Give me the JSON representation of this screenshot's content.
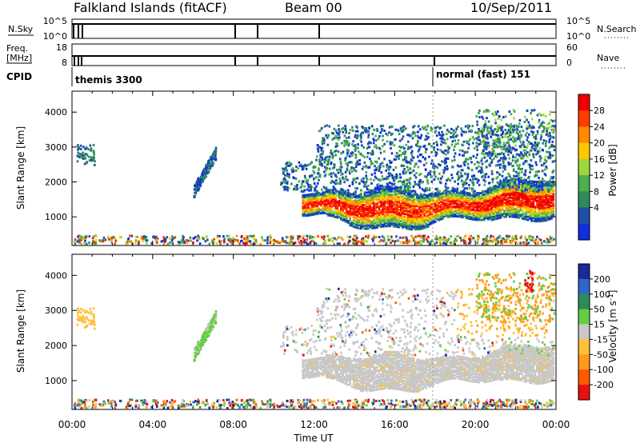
{
  "header": {
    "title": "Falkland Islands (fitACF)",
    "beam": "Beam 00",
    "date": "10/Sep/2011"
  },
  "strips": {
    "nsky_label": "N.Sky",
    "nsky_ticks": [
      "10^5",
      "10^0"
    ],
    "nsearch_label": "N.Search",
    "nsearch_ticks": [
      "10^5",
      "10^0"
    ],
    "freq_label_line1": "Freq.",
    "freq_label_line2": "[MHz]",
    "freq_ticks": [
      "18",
      "8"
    ],
    "nave_label": "Nave",
    "nave_ticks": [
      "60",
      "0"
    ],
    "cpid_label": "CPID",
    "cpid_segments": [
      {
        "label": "themis 3300",
        "start_hour": 0.0
      },
      {
        "label": "normal (fast) 151",
        "start_hour": 18.0
      }
    ]
  },
  "axes": {
    "ylabel": "Slant Range [km]",
    "yticks": [
      "4000",
      "3000",
      "2000",
      "1000"
    ],
    "xticks": [
      "00:00",
      "04:00",
      "08:00",
      "12:00",
      "16:00",
      "20:00",
      "00:00"
    ],
    "xlabel": "Time UT"
  },
  "colorbars": {
    "power": {
      "title": "Power [dB]",
      "ticks": [
        "28",
        "24",
        "20",
        "16",
        "12",
        "8",
        "4"
      ],
      "colors": [
        "#ee0000",
        "#ff3c00",
        "#ff8a00",
        "#ffc800",
        "#9ed83a",
        "#4caf50",
        "#2e8b57",
        "#1f4fa8",
        "#1030e0"
      ]
    },
    "velocity": {
      "title_main": "Velocity [m s",
      "title_sup": "-1",
      "title_end": "]",
      "ticks": [
        "200",
        "100",
        "50",
        "15",
        "-15",
        "-50",
        "-100",
        "-200"
      ],
      "colors": [
        "#1a2a9a",
        "#2f67c8",
        "#2e8b57",
        "#66cc44",
        "#c8c8c8",
        "#ffc03a",
        "#ff9a1a",
        "#ff5a00",
        "#e81010"
      ]
    }
  },
  "chart_data": [
    {
      "type": "heatmap",
      "title": "",
      "xlabel": "",
      "ylabel": "Slant Range [km]",
      "xlim": [
        0,
        24
      ],
      "ylim": [
        180,
        4600
      ],
      "colorbar": "Power [dB]",
      "features": [
        {
          "desc": "main echo band",
          "t_start": 11.5,
          "t_end": 24,
          "range_center_km": 1400,
          "power_db": [
            16,
            28
          ]
        },
        {
          "desc": "upper scattered echoes",
          "t_start": 10.5,
          "t_end": 24,
          "range_km": [
            1800,
            3600
          ],
          "power_db": [
            4,
            12
          ]
        },
        {
          "desc": "early feature",
          "t_start": 6.0,
          "t_end": 7.2,
          "range_km": [
            1700,
            3000
          ],
          "power_db": [
            4,
            12
          ]
        }
      ]
    },
    {
      "type": "heatmap",
      "title": "",
      "xlabel": "Time UT",
      "ylabel": "Slant Range [km]",
      "xlim": [
        0,
        24
      ],
      "ylim": [
        180,
        4600
      ],
      "colorbar": "Velocity [m s-1]",
      "features": [
        {
          "desc": "ground scatter band",
          "t_start": 11.5,
          "t_end": 24,
          "range_center_km": 1400,
          "velocity": "-15 to 15"
        },
        {
          "desc": "late ionospheric scatter",
          "t_start": 19.0,
          "t_end": 24,
          "range_km": [
            2000,
            3600
          ],
          "velocity": "-100 to -15"
        }
      ]
    }
  ]
}
